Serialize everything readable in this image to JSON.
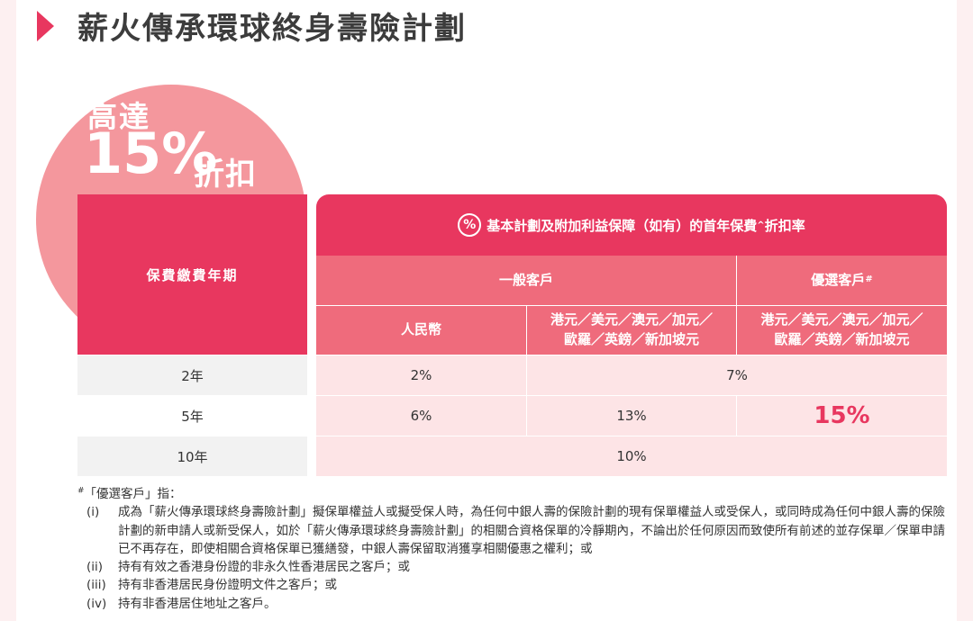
{
  "title": "薪火傳承環球終身壽險計劃",
  "promo": {
    "line1": "高達",
    "percent": "15%",
    "tail": "折扣"
  },
  "table": {
    "left_header": "保費繳費年期",
    "top_header": {
      "icon": "percent-icon",
      "icon_glyph": "%",
      "text": "基本計劃及附加利益保障（如有）的首年保費",
      "sup": "^",
      "suffix": "折扣率"
    },
    "general_header": "一般客戶",
    "preferred_header": "優選客戶",
    "preferred_sup": "#",
    "sub_rmb": "人民幣",
    "sub_fx_line1": "港元／美元／澳元／加元／",
    "sub_fx_line2": "歐羅／英鎊／新加坡元",
    "sub_pref_line1": "港元／美元／澳元／加元／",
    "sub_pref_line2": "歐羅／英鎊／新加坡元",
    "rows": [
      {
        "term": "2年",
        "rmb": "2%",
        "merged": "7%"
      },
      {
        "term": "5年",
        "rmb": "6%",
        "fx": "13%",
        "preferred": "15%"
      },
      {
        "term": "10年",
        "merged": "10%"
      }
    ]
  },
  "notes": {
    "sup": "#",
    "intro": "「優選客戶」指：",
    "items": [
      {
        "num": "(i)",
        "text": "成為「薪火傳承環球終身壽險計劃」擬保單權益人或擬受保人時，為任何中銀人壽的保險計劃的現有保單權益人或受保人，或同時成為任何中銀人壽的保險計劃的新申請人或新受保人，如於「薪火傳承環球終身壽險計劃」的相關合資格保單的冷靜期內，不論出於任何原因而致使所有前述的並存保單／保單申請已不再存在，即使相關合資格保單已獲繕發，中銀人壽保留取消獲享相關優惠之權利；或"
      },
      {
        "num": "(ii)",
        "text": "持有有效之香港身份證的非永久性香港居民之客戶；或"
      },
      {
        "num": "(iii)",
        "text": "持有非香港居民身份證明文件之客戶；或"
      },
      {
        "num": "(iv)",
        "text": "持有非香港居住地址之客戶。"
      }
    ]
  },
  "colors": {
    "accent": "#e8375f",
    "header_light": "#ef6b7c",
    "circle": "#f4979d",
    "row_pink": "#fde4e6",
    "row_grey": "#f2f2f2"
  }
}
